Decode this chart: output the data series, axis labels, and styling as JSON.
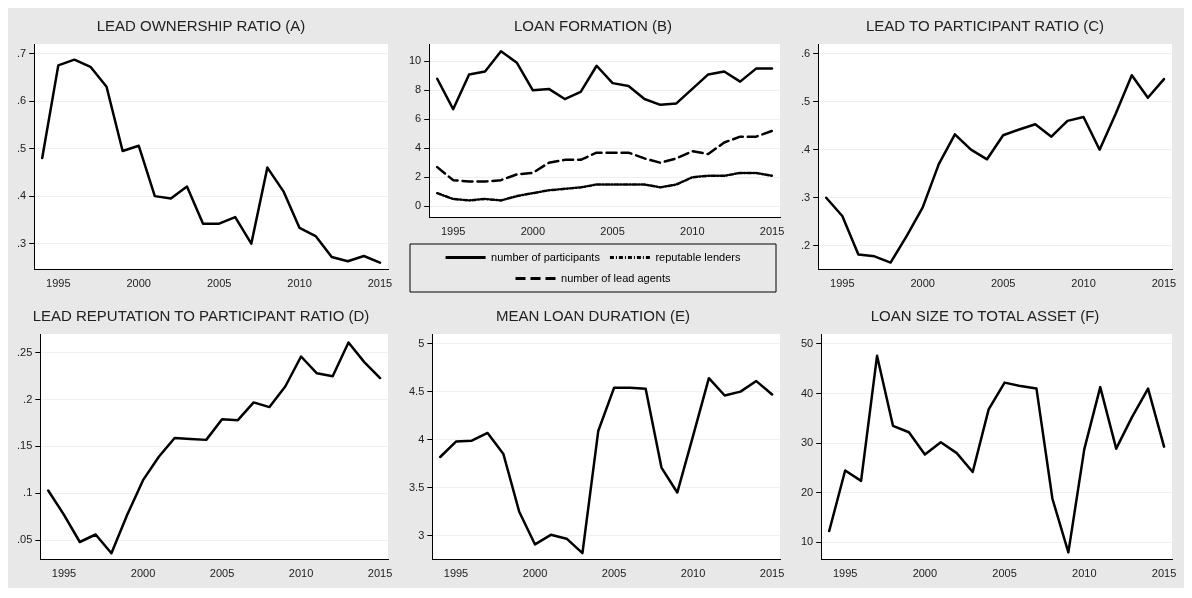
{
  "chart_data": [
    {
      "type": "line",
      "title": "LEAD OWNERSHIP RATIO (A)",
      "x": [
        1994,
        1995,
        1996,
        1997,
        1998,
        1999,
        2000,
        2001,
        2002,
        2003,
        2004,
        2005,
        2006,
        2007,
        2008,
        2009,
        2010,
        2011,
        2012,
        2013,
        2014,
        2015
      ],
      "series": [
        {
          "color": "#000000",
          "values": [
            0.48,
            0.675,
            0.687,
            0.672,
            0.63,
            0.495,
            0.506,
            0.4,
            0.395,
            0.42,
            0.342,
            0.342,
            0.356,
            0.3,
            0.46,
            0.41,
            0.333,
            0.316,
            0.272,
            0.263,
            0.274,
            0.26
          ]
        }
      ],
      "xlim": [
        1993.5,
        2015.5
      ],
      "xticks": [
        1995,
        2000,
        2005,
        2010,
        2015
      ],
      "ylim": [
        0.245,
        0.72
      ],
      "yticks": [
        {
          "value": 0.3,
          "label": ".3"
        },
        {
          "value": 0.4,
          "label": ".4"
        },
        {
          "value": 0.5,
          "label": ".5"
        },
        {
          "value": 0.6,
          "label": ".6"
        },
        {
          "value": 0.7,
          "label": ".7"
        }
      ],
      "grid": "y"
    },
    {
      "type": "line",
      "title": "LOAN FORMATION (B)",
      "x": [
        1994,
        1995,
        1996,
        1997,
        1998,
        1999,
        2000,
        2001,
        2002,
        2003,
        2004,
        2005,
        2006,
        2007,
        2008,
        2009,
        2010,
        2011,
        2012,
        2013,
        2014,
        2015
      ],
      "series": [
        {
          "name": "number of participants",
          "color": "#000000",
          "line_style": "solid",
          "values": [
            8.8,
            6.7,
            9.1,
            9.3,
            10.7,
            9.9,
            8.0,
            8.1,
            7.4,
            7.9,
            9.7,
            8.5,
            8.3,
            7.4,
            7.0,
            7.1,
            8.1,
            9.1,
            9.3,
            8.6,
            9.5,
            9.5
          ]
        },
        {
          "name": "reputable lenders",
          "color": "#000000",
          "line_style": "dotted",
          "values": [
            0.9,
            0.5,
            0.4,
            0.5,
            0.4,
            0.7,
            0.9,
            1.1,
            1.2,
            1.3,
            1.5,
            1.5,
            1.5,
            1.5,
            1.3,
            1.5,
            2.0,
            2.1,
            2.1,
            2.3,
            2.3,
            2.1
          ]
        },
        {
          "name": "number of lead agents",
          "color": "#000000",
          "line_style": "dashed",
          "values": [
            2.7,
            1.8,
            1.7,
            1.7,
            1.8,
            2.2,
            2.3,
            3.0,
            3.2,
            3.2,
            3.7,
            3.7,
            3.7,
            3.3,
            3.0,
            3.3,
            3.8,
            3.6,
            4.4,
            4.8,
            4.8,
            5.2
          ]
        }
      ],
      "xlim": [
        1993.5,
        2015.5
      ],
      "xticks": [
        1995,
        2000,
        2005,
        2010,
        2015
      ],
      "ylim": [
        -0.8,
        11.2
      ],
      "yticks": [
        0,
        2,
        4,
        6,
        8,
        10
      ],
      "grid": "y",
      "legend": "bottom"
    },
    {
      "type": "line",
      "title": "LEAD TO PARTICIPANT RATIO (C)",
      "x": [
        1994,
        1995,
        1996,
        1997,
        1998,
        1999,
        2000,
        2001,
        2002,
        2003,
        2004,
        2005,
        2006,
        2007,
        2008,
        2009,
        2010,
        2011,
        2012,
        2013,
        2014,
        2015
      ],
      "series": [
        {
          "color": "#000000",
          "values": [
            0.3,
            0.262,
            0.182,
            0.178,
            0.165,
            0.22,
            0.28,
            0.37,
            0.432,
            0.4,
            0.38,
            0.43,
            0.442,
            0.453,
            0.427,
            0.46,
            0.468,
            0.4,
            0.475,
            0.555,
            0.508,
            0.547
          ]
        }
      ],
      "xlim": [
        1993.5,
        2015.5
      ],
      "xticks": [
        1995,
        2000,
        2005,
        2010,
        2015
      ],
      "ylim": [
        0.15,
        0.62
      ],
      "yticks": [
        {
          "value": 0.2,
          "label": ".2"
        },
        {
          "value": 0.3,
          "label": ".3"
        },
        {
          "value": 0.4,
          "label": ".4"
        },
        {
          "value": 0.5,
          "label": ".5"
        },
        {
          "value": 0.6,
          "label": ".6"
        }
      ],
      "grid": "y"
    },
    {
      "type": "line",
      "title": "LEAD REPUTATION TO PARTICIPANT RATIO (D)",
      "x": [
        1994,
        1995,
        1996,
        1997,
        1998,
        1999,
        2000,
        2001,
        2002,
        2003,
        2004,
        2005,
        2006,
        2007,
        2008,
        2009,
        2010,
        2011,
        2012,
        2013,
        2014,
        2015
      ],
      "series": [
        {
          "color": "#000000",
          "values": [
            0.103,
            0.077,
            0.048,
            0.056,
            0.036,
            0.077,
            0.114,
            0.139,
            0.159,
            0.158,
            0.157,
            0.179,
            0.178,
            0.197,
            0.192,
            0.214,
            0.246,
            0.228,
            0.225,
            0.261,
            0.24,
            0.223
          ]
        }
      ],
      "xlim": [
        1993.5,
        2015.5
      ],
      "xticks": [
        1995,
        2000,
        2005,
        2010,
        2015
      ],
      "ylim": [
        0.029,
        0.27
      ],
      "yticks": [
        {
          "value": 0.05,
          "label": ".05"
        },
        {
          "value": 0.1,
          "label": ".1"
        },
        {
          "value": 0.15,
          "label": ".15"
        },
        {
          "value": 0.2,
          "label": ".2"
        },
        {
          "value": 0.25,
          "label": ".25"
        }
      ],
      "grid": "y"
    },
    {
      "type": "line",
      "title": "MEAN LOAN DURATION (E)",
      "x": [
        1994,
        1995,
        1996,
        1997,
        1998,
        1999,
        2000,
        2001,
        2002,
        2003,
        2004,
        2005,
        2006,
        2007,
        2008,
        2009,
        2010,
        2011,
        2012,
        2013,
        2014,
        2015
      ],
      "series": [
        {
          "color": "#000000",
          "values": [
            3.82,
            3.98,
            3.99,
            4.07,
            3.85,
            3.25,
            2.91,
            3.01,
            2.97,
            2.82,
            4.09,
            4.54,
            4.54,
            4.53,
            3.71,
            3.45,
            4.04,
            4.64,
            4.46,
            4.5,
            4.61,
            4.47
          ]
        }
      ],
      "xlim": [
        1993.5,
        2015.5
      ],
      "xticks": [
        1995,
        2000,
        2005,
        2010,
        2015
      ],
      "ylim": [
        2.75,
        5.1
      ],
      "yticks": [
        3,
        3.5,
        4,
        4.5,
        5
      ],
      "grid": "y"
    },
    {
      "type": "line",
      "title": "LOAN SIZE TO TOTAL ASSET (F)",
      "x": [
        1994,
        1995,
        1996,
        1997,
        1998,
        1999,
        2000,
        2001,
        2002,
        2003,
        2004,
        2005,
        2006,
        2007,
        2008,
        2009,
        2010,
        2011,
        2012,
        2013,
        2014,
        2015
      ],
      "series": [
        {
          "color": "#000000",
          "values": [
            12.3,
            24.5,
            22.4,
            47.6,
            33.5,
            32.2,
            27.7,
            30.2,
            28,
            24.2,
            36.8,
            42.2,
            41.5,
            41,
            18.8,
            8,
            28.8,
            41.3,
            28.9,
            35.3,
            41,
            29.3
          ]
        }
      ],
      "xlim": [
        1993.5,
        2015.5
      ],
      "xticks": [
        1995,
        2000,
        2005,
        2010,
        2015
      ],
      "ylim": [
        6.5,
        52
      ],
      "yticks": [
        10,
        20,
        30,
        40,
        50
      ],
      "grid": "y"
    }
  ]
}
